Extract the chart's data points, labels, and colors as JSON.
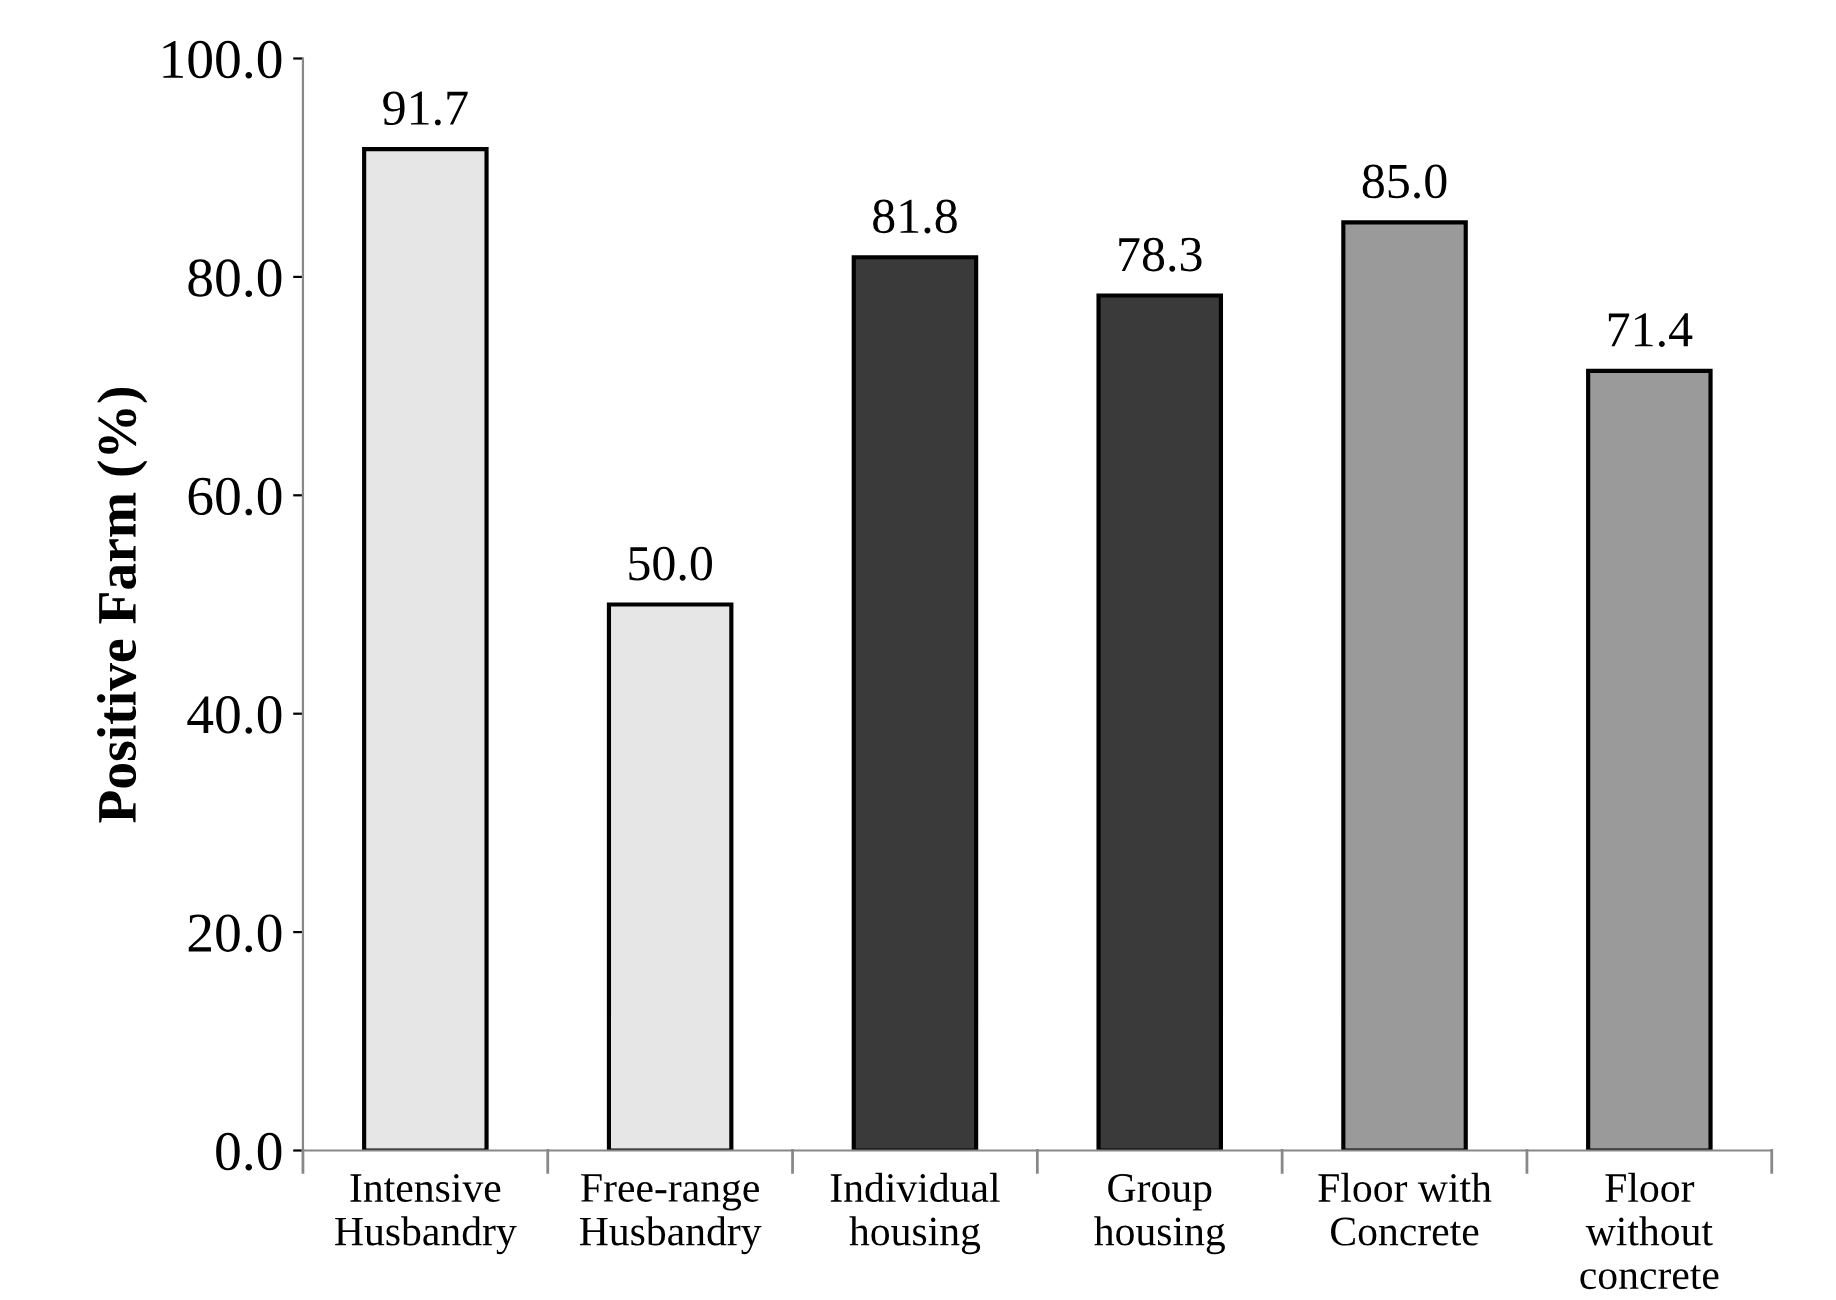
{
  "chart_data": {
    "type": "bar",
    "ylabel": "Positive Farm (%)",
    "categories": [
      "Intensive\nHusbandry",
      "Free-range\nHusbandry",
      "Individual\nhousing",
      "Group\nhousing",
      "Floor with\nConcrete",
      "Floor\nwithout\nconcrete"
    ],
    "values": [
      91.7,
      50.0,
      81.8,
      78.3,
      85.0,
      71.4
    ],
    "value_labels": [
      "91.7",
      "50.0",
      "81.8",
      "78.3",
      "85.0",
      "71.4"
    ],
    "colors": [
      "#e6e6e6",
      "#e6e6e6",
      "#3a3a3a",
      "#3a3a3a",
      "#9a9a9a",
      "#9a9a9a"
    ],
    "ylim": [
      0,
      100
    ],
    "yticks": [
      {
        "value": 0,
        "label": "0.0"
      },
      {
        "value": 20,
        "label": "20.0"
      },
      {
        "value": 40,
        "label": "40.0"
      },
      {
        "value": 60,
        "label": "60.0"
      },
      {
        "value": 80,
        "label": "80.0"
      },
      {
        "value": 100,
        "label": "100.0"
      }
    ],
    "grid": false,
    "legend": false
  }
}
